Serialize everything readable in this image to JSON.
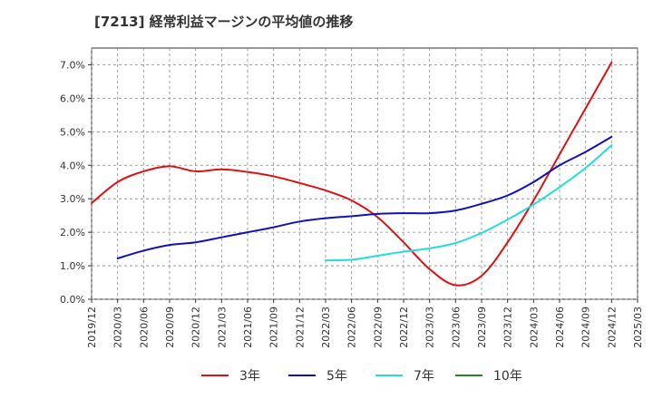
{
  "chart_data": {
    "type": "line",
    "title": "[7213]  経常利益マージンの平均値の推移",
    "xlabel": "",
    "ylabel": "",
    "x_ticks": [
      "2019/12",
      "2020/03",
      "2020/06",
      "2020/09",
      "2020/12",
      "2021/03",
      "2021/06",
      "2021/09",
      "2021/12",
      "2022/03",
      "2022/06",
      "2022/09",
      "2022/12",
      "2023/03",
      "2023/06",
      "2023/09",
      "2023/12",
      "2024/03",
      "2024/06",
      "2024/09",
      "2024/12",
      "2025/03"
    ],
    "y_ticks": [
      "0.0%",
      "1.0%",
      "2.0%",
      "3.0%",
      "4.0%",
      "5.0%",
      "6.0%",
      "7.0%"
    ],
    "ylim": [
      0,
      7.5
    ],
    "grid": true,
    "legend_position": "bottom",
    "series": [
      {
        "name": "3年",
        "color": "#dd1111",
        "x": [
          "2019/12",
          "2020/03",
          "2020/06",
          "2020/09",
          "2020/12",
          "2021/03",
          "2021/06",
          "2021/09",
          "2021/12",
          "2022/03",
          "2022/06",
          "2022/09",
          "2022/12",
          "2023/03",
          "2023/06",
          "2023/09",
          "2023/12",
          "2024/03",
          "2024/06",
          "2024/09",
          "2024/12"
        ],
        "values": [
          2.87,
          3.5,
          3.82,
          3.97,
          3.82,
          3.88,
          3.8,
          3.67,
          3.47,
          3.25,
          2.95,
          2.45,
          1.7,
          0.9,
          0.42,
          0.7,
          1.7,
          2.95,
          4.33,
          5.7,
          7.07
        ]
      },
      {
        "name": "5年",
        "color": "#1111bb",
        "x": [
          "2020/03",
          "2020/06",
          "2020/09",
          "2020/12",
          "2021/03",
          "2021/06",
          "2021/09",
          "2021/12",
          "2022/03",
          "2022/06",
          "2022/09",
          "2022/12",
          "2023/03",
          "2023/06",
          "2023/09",
          "2023/12",
          "2024/03",
          "2024/06",
          "2024/09",
          "2024/12"
        ],
        "values": [
          1.22,
          1.45,
          1.62,
          1.7,
          1.85,
          2.0,
          2.15,
          2.32,
          2.42,
          2.48,
          2.55,
          2.57,
          2.57,
          2.65,
          2.85,
          3.1,
          3.5,
          4.0,
          4.4,
          4.85
        ]
      },
      {
        "name": "7年",
        "color": "#22dddd",
        "x": [
          "2022/03",
          "2022/06",
          "2022/09",
          "2022/12",
          "2023/03",
          "2023/06",
          "2023/09",
          "2023/12",
          "2024/03",
          "2024/06",
          "2024/09",
          "2024/12"
        ],
        "values": [
          1.16,
          1.18,
          1.3,
          1.42,
          1.52,
          1.68,
          1.98,
          2.38,
          2.83,
          3.35,
          3.92,
          4.6
        ]
      },
      {
        "name": "10年",
        "color": "#228822",
        "x": [],
        "values": []
      }
    ]
  }
}
